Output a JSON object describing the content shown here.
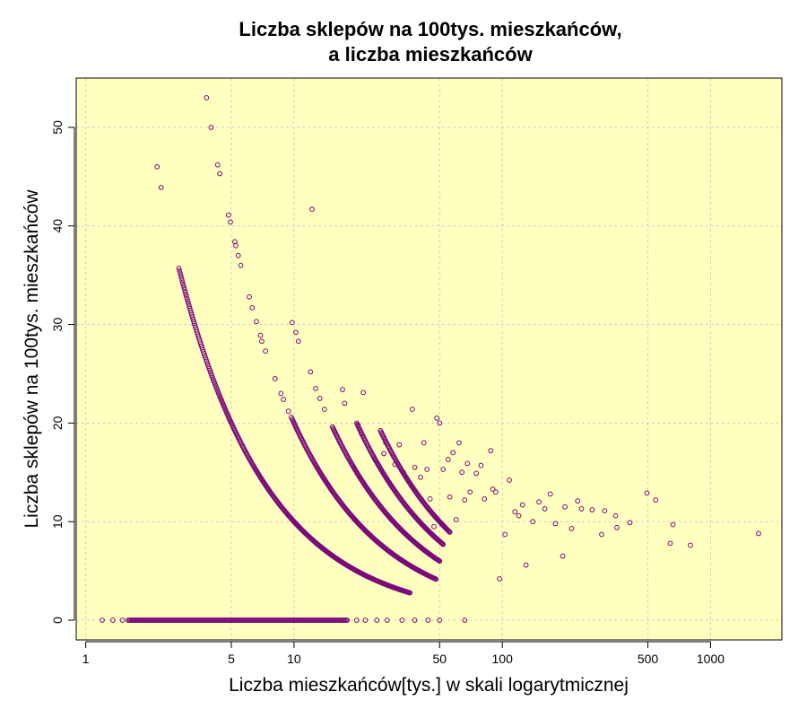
{
  "chart_data": {
    "type": "scatter",
    "title_line1": "Liczba sklepów na 100tys. mieszkańców,",
    "title_line2": "a liczba mieszkańców",
    "xlabel": "Liczba mieszkańców[tys.] w skali logarytmicznej",
    "ylabel": "Liczba sklepów na 100tys. mieszkańców",
    "x_scale": "log",
    "xlim": [
      0.9,
      2200
    ],
    "ylim": [
      -2,
      55
    ],
    "x_ticks": [
      1,
      5,
      10,
      50,
      100,
      500,
      1000
    ],
    "x_tick_labels": [
      "1",
      "5",
      "10",
      "50",
      "100",
      "500",
      "1000"
    ],
    "y_ticks": [
      0,
      10,
      20,
      30,
      40,
      50
    ],
    "y_tick_labels": [
      "0",
      "10",
      "20",
      "30",
      "40",
      "50"
    ],
    "grid": true,
    "colors": {
      "plot_bg": "#ffffc0",
      "point": "#7b0a7b",
      "grid": "#cfcfcf"
    },
    "curves": [
      {
        "shops": 1,
        "x_from": 2.8,
        "x_to": 36
      },
      {
        "shops": 2,
        "x_from": 9.8,
        "x_to": 48
      },
      {
        "shops": 3,
        "x_from": 15.3,
        "x_to": 50
      },
      {
        "shops": 4,
        "x_from": 20,
        "x_to": 52
      },
      {
        "shops": 5,
        "x_from": 26,
        "x_to": 56
      }
    ],
    "zero_points": {
      "y": 0,
      "x_from": 1.6,
      "x_to": 18,
      "count": 200,
      "extra_x": [
        1.2,
        1.35,
        1.5,
        20,
        22,
        25,
        28,
        33,
        38,
        44,
        50,
        66
      ]
    },
    "points": [
      {
        "x": 2.2,
        "y": 46
      },
      {
        "x": 2.3,
        "y": 43.9
      },
      {
        "x": 3.8,
        "y": 53
      },
      {
        "x": 4.0,
        "y": 50
      },
      {
        "x": 4.3,
        "y": 46.2
      },
      {
        "x": 4.4,
        "y": 45.3
      },
      {
        "x": 4.85,
        "y": 41.1
      },
      {
        "x": 4.95,
        "y": 40.4
      },
      {
        "x": 5.2,
        "y": 38.4
      },
      {
        "x": 5.25,
        "y": 38.0
      },
      {
        "x": 5.4,
        "y": 37
      },
      {
        "x": 5.55,
        "y": 36
      },
      {
        "x": 6.1,
        "y": 32.8
      },
      {
        "x": 6.3,
        "y": 31.7
      },
      {
        "x": 6.6,
        "y": 30.3
      },
      {
        "x": 6.9,
        "y": 28.9
      },
      {
        "x": 7.0,
        "y": 28.3
      },
      {
        "x": 7.3,
        "y": 27.3
      },
      {
        "x": 8.1,
        "y": 24.5
      },
      {
        "x": 8.65,
        "y": 23.0
      },
      {
        "x": 8.9,
        "y": 22.4
      },
      {
        "x": 9.4,
        "y": 21.2
      },
      {
        "x": 9.7,
        "y": 20.6
      },
      {
        "x": 9.8,
        "y": 30.2
      },
      {
        "x": 10.2,
        "y": 29.2
      },
      {
        "x": 10.5,
        "y": 28.3
      },
      {
        "x": 12.0,
        "y": 25.2
      },
      {
        "x": 12.2,
        "y": 41.7
      },
      {
        "x": 12.7,
        "y": 23.5
      },
      {
        "x": 13.3,
        "y": 22.5
      },
      {
        "x": 14.0,
        "y": 21.4
      },
      {
        "x": 17.1,
        "y": 23.4
      },
      {
        "x": 17.5,
        "y": 22.0
      },
      {
        "x": 21.5,
        "y": 23.1
      },
      {
        "x": 20.3,
        "y": 19.8
      },
      {
        "x": 21.1,
        "y": 18.9
      },
      {
        "x": 24.5,
        "y": 16.3
      },
      {
        "x": 25.3,
        "y": 15.8
      },
      {
        "x": 27.0,
        "y": 16.9
      },
      {
        "x": 27.6,
        "y": 18.0
      },
      {
        "x": 30.5,
        "y": 15.8
      },
      {
        "x": 32.0,
        "y": 17.8
      },
      {
        "x": 33.5,
        "y": 15.0
      },
      {
        "x": 37.0,
        "y": 21.4
      },
      {
        "x": 38.0,
        "y": 15.5
      },
      {
        "x": 40.5,
        "y": 14.5
      },
      {
        "x": 42.0,
        "y": 18.0
      },
      {
        "x": 43.5,
        "y": 15.3
      },
      {
        "x": 45.0,
        "y": 12.3
      },
      {
        "x": 47.0,
        "y": 9.5
      },
      {
        "x": 48.5,
        "y": 20.5
      },
      {
        "x": 50.0,
        "y": 20.0
      },
      {
        "x": 52.0,
        "y": 15.3
      },
      {
        "x": 55.0,
        "y": 16.3
      },
      {
        "x": 56.0,
        "y": 12.5
      },
      {
        "x": 58.0,
        "y": 17.0
      },
      {
        "x": 60.0,
        "y": 10.2
      },
      {
        "x": 62.0,
        "y": 18.0
      },
      {
        "x": 64.0,
        "y": 15.0
      },
      {
        "x": 66.0,
        "y": 12.2
      },
      {
        "x": 68.0,
        "y": 15.9
      },
      {
        "x": 70.0,
        "y": 13.0
      },
      {
        "x": 75.0,
        "y": 14.9
      },
      {
        "x": 79.0,
        "y": 15.7
      },
      {
        "x": 82.0,
        "y": 12.3
      },
      {
        "x": 88.0,
        "y": 17.2
      },
      {
        "x": 90.0,
        "y": 13.3
      },
      {
        "x": 93.0,
        "y": 13.0
      },
      {
        "x": 97.0,
        "y": 4.2
      },
      {
        "x": 103.0,
        "y": 8.7
      },
      {
        "x": 108.0,
        "y": 14.2
      },
      {
        "x": 115.0,
        "y": 11.0
      },
      {
        "x": 120.0,
        "y": 10.6
      },
      {
        "x": 125.0,
        "y": 11.7
      },
      {
        "x": 130.0,
        "y": 5.6
      },
      {
        "x": 140.0,
        "y": 10.0
      },
      {
        "x": 150.0,
        "y": 12.0
      },
      {
        "x": 160.0,
        "y": 11.3
      },
      {
        "x": 170.0,
        "y": 12.8
      },
      {
        "x": 180.0,
        "y": 9.8
      },
      {
        "x": 195.0,
        "y": 6.5
      },
      {
        "x": 200.0,
        "y": 11.5
      },
      {
        "x": 215.0,
        "y": 9.3
      },
      {
        "x": 230.0,
        "y": 12.1
      },
      {
        "x": 240.0,
        "y": 11.3
      },
      {
        "x": 270.0,
        "y": 11.2
      },
      {
        "x": 300.0,
        "y": 8.7
      },
      {
        "x": 310.0,
        "y": 11.1
      },
      {
        "x": 350.0,
        "y": 10.6
      },
      {
        "x": 355.0,
        "y": 9.4
      },
      {
        "x": 410.0,
        "y": 9.9
      },
      {
        "x": 495.0,
        "y": 12.9
      },
      {
        "x": 545.0,
        "y": 12.2
      },
      {
        "x": 640.0,
        "y": 7.8
      },
      {
        "x": 660.0,
        "y": 9.7
      },
      {
        "x": 800.0,
        "y": 7.6
      },
      {
        "x": 1700.0,
        "y": 8.8
      }
    ]
  }
}
